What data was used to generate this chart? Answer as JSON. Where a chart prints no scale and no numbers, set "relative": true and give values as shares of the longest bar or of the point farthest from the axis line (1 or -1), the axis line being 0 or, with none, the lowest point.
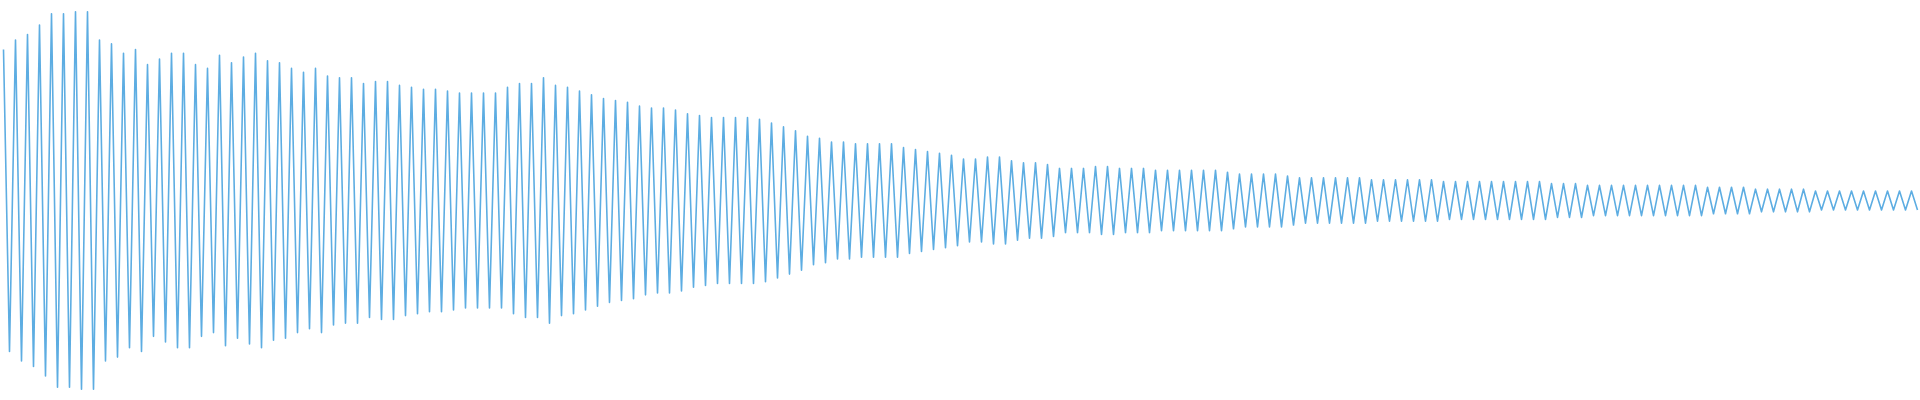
{
  "chart_data": {
    "type": "line",
    "relative": true,
    "color": "#5dade2",
    "categories": [
      null,
      null,
      null,
      null,
      null,
      null,
      null,
      null,
      null,
      null,
      null,
      null,
      null,
      null,
      null,
      null,
      null,
      null,
      null,
      null,
      null,
      null,
      null,
      null,
      null,
      null,
      null,
      null,
      null,
      null,
      null,
      null,
      null,
      null,
      null,
      null,
      null,
      null,
      null,
      null,
      null,
      null,
      null,
      null,
      null,
      null,
      null,
      null,
      null,
      null,
      null,
      null,
      null,
      null,
      null,
      null,
      null,
      null,
      null,
      null,
      null,
      null,
      null,
      null,
      null,
      null,
      null,
      null,
      null,
      null,
      null,
      null,
      null,
      null,
      null,
      null,
      null,
      null,
      null,
      null,
      null,
      null,
      null,
      null,
      null,
      null,
      null,
      null,
      null,
      null,
      null,
      null,
      null,
      null,
      null,
      null,
      null,
      null,
      null,
      null,
      null,
      null,
      null,
      null,
      null,
      null,
      null,
      null,
      null,
      null,
      null,
      null,
      null,
      null,
      null,
      null,
      null,
      null,
      null,
      null,
      null,
      null,
      null,
      null,
      null,
      null,
      null,
      null,
      null,
      null,
      null,
      null,
      null,
      null,
      null,
      null,
      null,
      null,
      null,
      null,
      null,
      null,
      null,
      null,
      null,
      null,
      null,
      null,
      null,
      null,
      null,
      null,
      null,
      null,
      null,
      null,
      null,
      null,
      null,
      null,
      null,
      null,
      null,
      null,
      null,
      null,
      null,
      null,
      null,
      null,
      null,
      null,
      null,
      null,
      null,
      null,
      null,
      null,
      null,
      null,
      null,
      null,
      null,
      null,
      null,
      null,
      null,
      null,
      null,
      null,
      null,
      null,
      null,
      null,
      null,
      null,
      null,
      null,
      null,
      null,
      null,
      null,
      null,
      null,
      null,
      null,
      null,
      null,
      null,
      null,
      null,
      null,
      null,
      null,
      null,
      null,
      null,
      null,
      null,
      null,
      null,
      null,
      null,
      null,
      null,
      null,
      null,
      null,
      null,
      null,
      null,
      null,
      null,
      null,
      null,
      null,
      null,
      null,
      null,
      null,
      null,
      null,
      null,
      null,
      null,
      null,
      null,
      null,
      null,
      null,
      null,
      null,
      null,
      null,
      null,
      null,
      null,
      null,
      null,
      null,
      null,
      null,
      null,
      null,
      null,
      null,
      null,
      null,
      null,
      null,
      null,
      null,
      null,
      null,
      null,
      null,
      null,
      null,
      null,
      null,
      null,
      null,
      null,
      null,
      null,
      null,
      null,
      null,
      null,
      null,
      null,
      null,
      null,
      null,
      null,
      null,
      null,
      null,
      null,
      null,
      null,
      null,
      null,
      null,
      null,
      null,
      null,
      null,
      null,
      null,
      null,
      null,
      null,
      null,
      null,
      null,
      null,
      null,
      null,
      null
    ],
    "values": [
      0.9,
      0.1,
      0.925,
      0.075,
      0.94,
      0.06,
      0.965,
      0.035,
      0.995,
      0.005,
      0.995,
      0.005,
      1,
      0,
      1,
      0,
      0.925,
      0.075,
      0.915,
      0.085,
      0.89,
      0.11,
      0.9,
      0.1,
      0.86,
      0.14,
      0.875,
      0.125,
      0.89,
      0.11,
      0.89,
      0.11,
      0.86,
      0.14,
      0.85,
      0.15,
      0.885,
      0.115,
      0.865,
      0.135,
      0.88,
      0.12,
      0.89,
      0.11,
      0.87,
      0.13,
      0.865,
      0.135,
      0.85,
      0.15,
      0.84,
      0.16,
      0.85,
      0.15,
      0.83,
      0.17,
      0.825,
      0.175,
      0.825,
      0.175,
      0.81,
      0.19,
      0.815,
      0.185,
      0.815,
      0.185,
      0.805,
      0.195,
      0.8,
      0.2,
      0.795,
      0.205,
      0.795,
      0.205,
      0.79,
      0.21,
      0.785,
      0.215,
      0.785,
      0.215,
      0.785,
      0.215,
      0.785,
      0.215,
      0.8,
      0.2,
      0.81,
      0.19,
      0.81,
      0.19,
      0.825,
      0.175,
      0.805,
      0.195,
      0.8,
      0.2,
      0.79,
      0.21,
      0.78,
      0.22,
      0.77,
      0.23,
      0.765,
      0.235,
      0.76,
      0.24,
      0.75,
      0.25,
      0.745,
      0.255,
      0.745,
      0.255,
      0.74,
      0.26,
      0.73,
      0.27,
      0.725,
      0.275,
      0.72,
      0.28,
      0.72,
      0.28,
      0.72,
      0.28,
      0.72,
      0.28,
      0.715,
      0.285,
      0.705,
      0.295,
      0.695,
      0.305,
      0.685,
      0.315,
      0.67,
      0.33,
      0.665,
      0.335,
      0.655,
      0.345,
      0.655,
      0.345,
      0.65,
      0.35,
      0.65,
      0.35,
      0.65,
      0.35,
      0.65,
      0.35,
      0.64,
      0.36,
      0.635,
      0.365,
      0.63,
      0.37,
      0.625,
      0.375,
      0.62,
      0.38,
      0.61,
      0.39,
      0.61,
      0.39,
      0.615,
      0.385,
      0.615,
      0.385,
      0.605,
      0.395,
      0.6,
      0.4,
      0.6,
      0.4,
      0.595,
      0.405,
      0.585,
      0.415,
      0.585,
      0.415,
      0.585,
      0.415,
      0.59,
      0.41,
      0.59,
      0.41,
      0.585,
      0.415,
      0.585,
      0.415,
      0.585,
      0.415,
      0.58,
      0.42,
      0.58,
      0.42,
      0.58,
      0.42,
      0.58,
      0.42,
      0.58,
      0.42,
      0.58,
      0.42,
      0.575,
      0.425,
      0.57,
      0.43,
      0.57,
      0.43,
      0.57,
      0.43,
      0.57,
      0.43,
      0.565,
      0.435,
      0.56,
      0.44,
      0.56,
      0.44,
      0.56,
      0.44,
      0.56,
      0.44,
      0.56,
      0.44,
      0.56,
      0.44,
      0.555,
      0.445,
      0.555,
      0.445,
      0.555,
      0.445,
      0.555,
      0.445,
      0.555,
      0.445,
      0.555,
      0.445,
      0.55,
      0.45,
      0.55,
      0.45,
      0.55,
      0.45,
      0.55,
      0.45,
      0.55,
      0.45,
      0.55,
      0.45,
      0.55,
      0.45,
      0.55,
      0.45,
      0.55,
      0.45,
      0.545,
      0.455,
      0.545,
      0.455,
      0.545,
      0.455,
      0.54,
      0.46,
      0.54,
      0.46,
      0.54,
      0.46,
      0.54,
      0.46,
      0.54,
      0.46,
      0.54,
      0.46,
      0.54,
      0.46,
      0.54,
      0.46,
      0.54,
      0.46,
      0.54,
      0.46,
      0.535,
      0.465,
      0.535,
      0.465,
      0.535,
      0.465,
      0.535,
      0.465,
      0.53,
      0.47,
      0.53,
      0.47,
      0.53,
      0.47,
      0.53,
      0.47,
      0.53,
      0.47,
      0.525,
      0.475,
      0.525,
      0.475,
      0.525,
      0.475,
      0.525,
      0.475,
      0.525,
      0.475,
      0.525,
      0.475,
      0.525,
      0.475,
      0.525,
      0.475,
      0.525,
      0.475
    ]
  }
}
